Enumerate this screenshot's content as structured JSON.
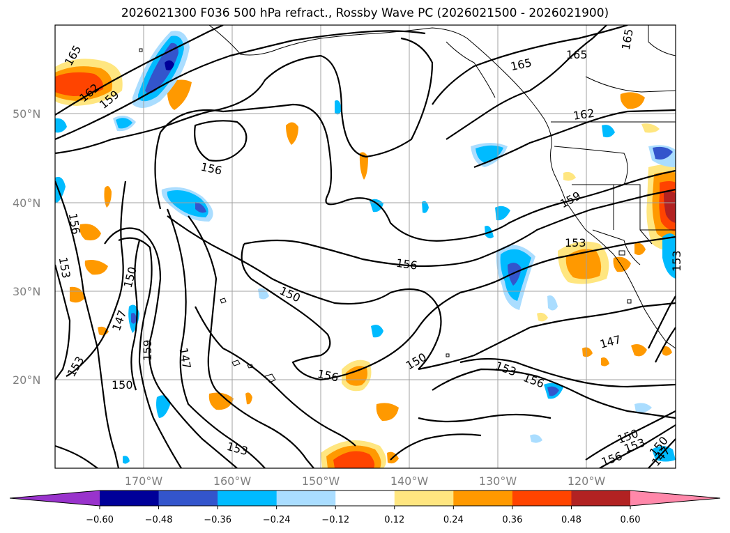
{
  "title": "2026021300 F036 500 hPa refract., Rossby Wave PC (2026021500 - 2026021900)",
  "map": {
    "lat_labels": [
      {
        "label": "50°N",
        "lat": 50
      },
      {
        "label": "40°N",
        "lat": 40
      },
      {
        "label": "30°N",
        "lat": 30
      },
      {
        "label": "20°N",
        "lat": 20
      }
    ],
    "lon_labels": [
      {
        "label": "170°W",
        "lon": -170
      },
      {
        "label": "160°W",
        "lon": -160
      },
      {
        "label": "150°W",
        "lon": -150
      },
      {
        "label": "140°W",
        "lon": -140
      },
      {
        "label": "130°W",
        "lon": -130
      },
      {
        "label": "120°W",
        "lon": -120
      }
    ],
    "contour_labels": [
      "165",
      "162",
      "159",
      "165",
      "165",
      "165",
      "162",
      "156",
      "159",
      "156",
      "153",
      "153",
      "156",
      "153",
      "150",
      "150",
      "147",
      "159",
      "147",
      "153",
      "150",
      "156",
      "150",
      "153",
      "156",
      "147",
      "150",
      "153",
      "150",
      "147",
      "156",
      "153"
    ],
    "gridline_color": "#a0a0a0",
    "contour_color": "#000000"
  },
  "colorbar": {
    "ticks": [
      "−0.60",
      "−0.48",
      "−0.36",
      "−0.24",
      "−0.12",
      "0.12",
      "0.24",
      "0.36",
      "0.48",
      "0.60"
    ],
    "colors": [
      "#9933cc",
      "#000099",
      "#3355cc",
      "#00bbff",
      "#aaddff",
      "#ffffff",
      "#ffe680",
      "#ff9900",
      "#ff4400",
      "#b22222",
      "#ff88aa"
    ]
  }
}
